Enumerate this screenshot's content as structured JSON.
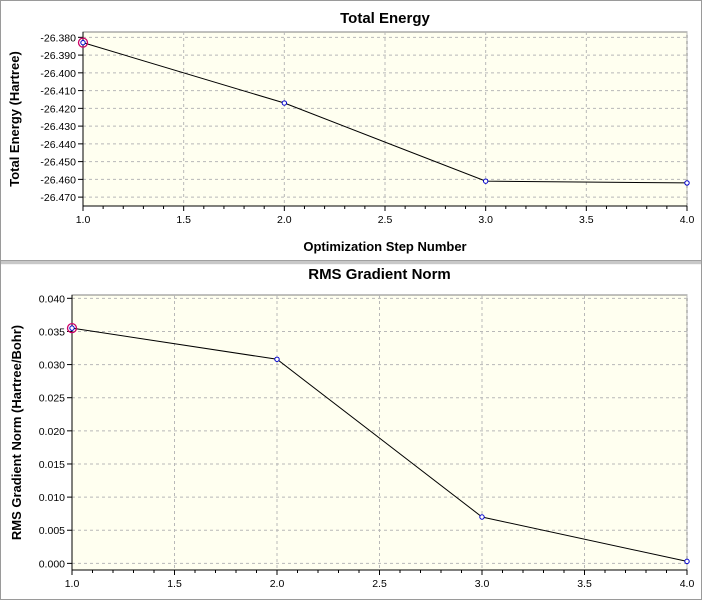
{
  "window": {
    "background": "#ffffff"
  },
  "chart_data": [
    {
      "type": "line",
      "title": "Total Energy",
      "xlabel": "Optimization Step Number",
      "ylabel": "Total Energy (Hartree)",
      "x": [
        1,
        2,
        3,
        4
      ],
      "y": [
        -26.383,
        -26.417,
        -26.461,
        -26.462
      ],
      "xlim": [
        1.0,
        4.0
      ],
      "ylim": [
        -26.475,
        -26.377
      ],
      "xticks": [
        1.0,
        1.5,
        2.0,
        2.5,
        3.0,
        3.5,
        4.0
      ],
      "xtick_labels": [
        "1.0",
        "1.5",
        "2.0",
        "2.5",
        "3.0",
        "3.5",
        "4.0"
      ],
      "yticks": [
        -26.38,
        -26.39,
        -26.4,
        -26.41,
        -26.42,
        -26.43,
        -26.44,
        -26.45,
        -26.46,
        -26.47
      ],
      "ytick_labels": [
        "-26.380",
        "-26.390",
        "-26.400",
        "-26.410",
        "-26.420",
        "-26.430",
        "-26.440",
        "-26.450",
        "-26.460",
        "-26.470"
      ],
      "grid": true,
      "highlighted_point_index": 0,
      "colors": {
        "plot_background": "#fffff0",
        "grid": "#b8b8b8",
        "line": "#000000",
        "marker": "#0000cc",
        "highlight": "#cc0066"
      }
    },
    {
      "type": "line",
      "title": "RMS Gradient Norm",
      "xlabel": "",
      "ylabel": "RMS Gradient Norm (Hartree/Bohr)",
      "x": [
        1,
        2,
        3,
        4
      ],
      "y": [
        0.0355,
        0.0308,
        0.007,
        0.0003
      ],
      "xlim": [
        1.0,
        4.0
      ],
      "ylim": [
        -0.001,
        0.0405
      ],
      "xticks": [
        1.0,
        1.5,
        2.0,
        2.5,
        3.0,
        3.5,
        4.0
      ],
      "xtick_labels": [
        "1.0",
        "1.5",
        "2.0",
        "2.5",
        "3.0",
        "3.5",
        "4.0"
      ],
      "yticks": [
        0.04,
        0.035,
        0.03,
        0.025,
        0.02,
        0.015,
        0.01,
        0.005,
        0.0
      ],
      "ytick_labels": [
        "0.040",
        "0.035",
        "0.030",
        "0.025",
        "0.020",
        "0.015",
        "0.010",
        "0.005",
        "0.000"
      ],
      "grid": true,
      "highlighted_point_index": 0,
      "colors": {
        "plot_background": "#fffff0",
        "grid": "#b8b8b8",
        "line": "#000000",
        "marker": "#0000cc",
        "highlight": "#cc0066"
      }
    }
  ]
}
